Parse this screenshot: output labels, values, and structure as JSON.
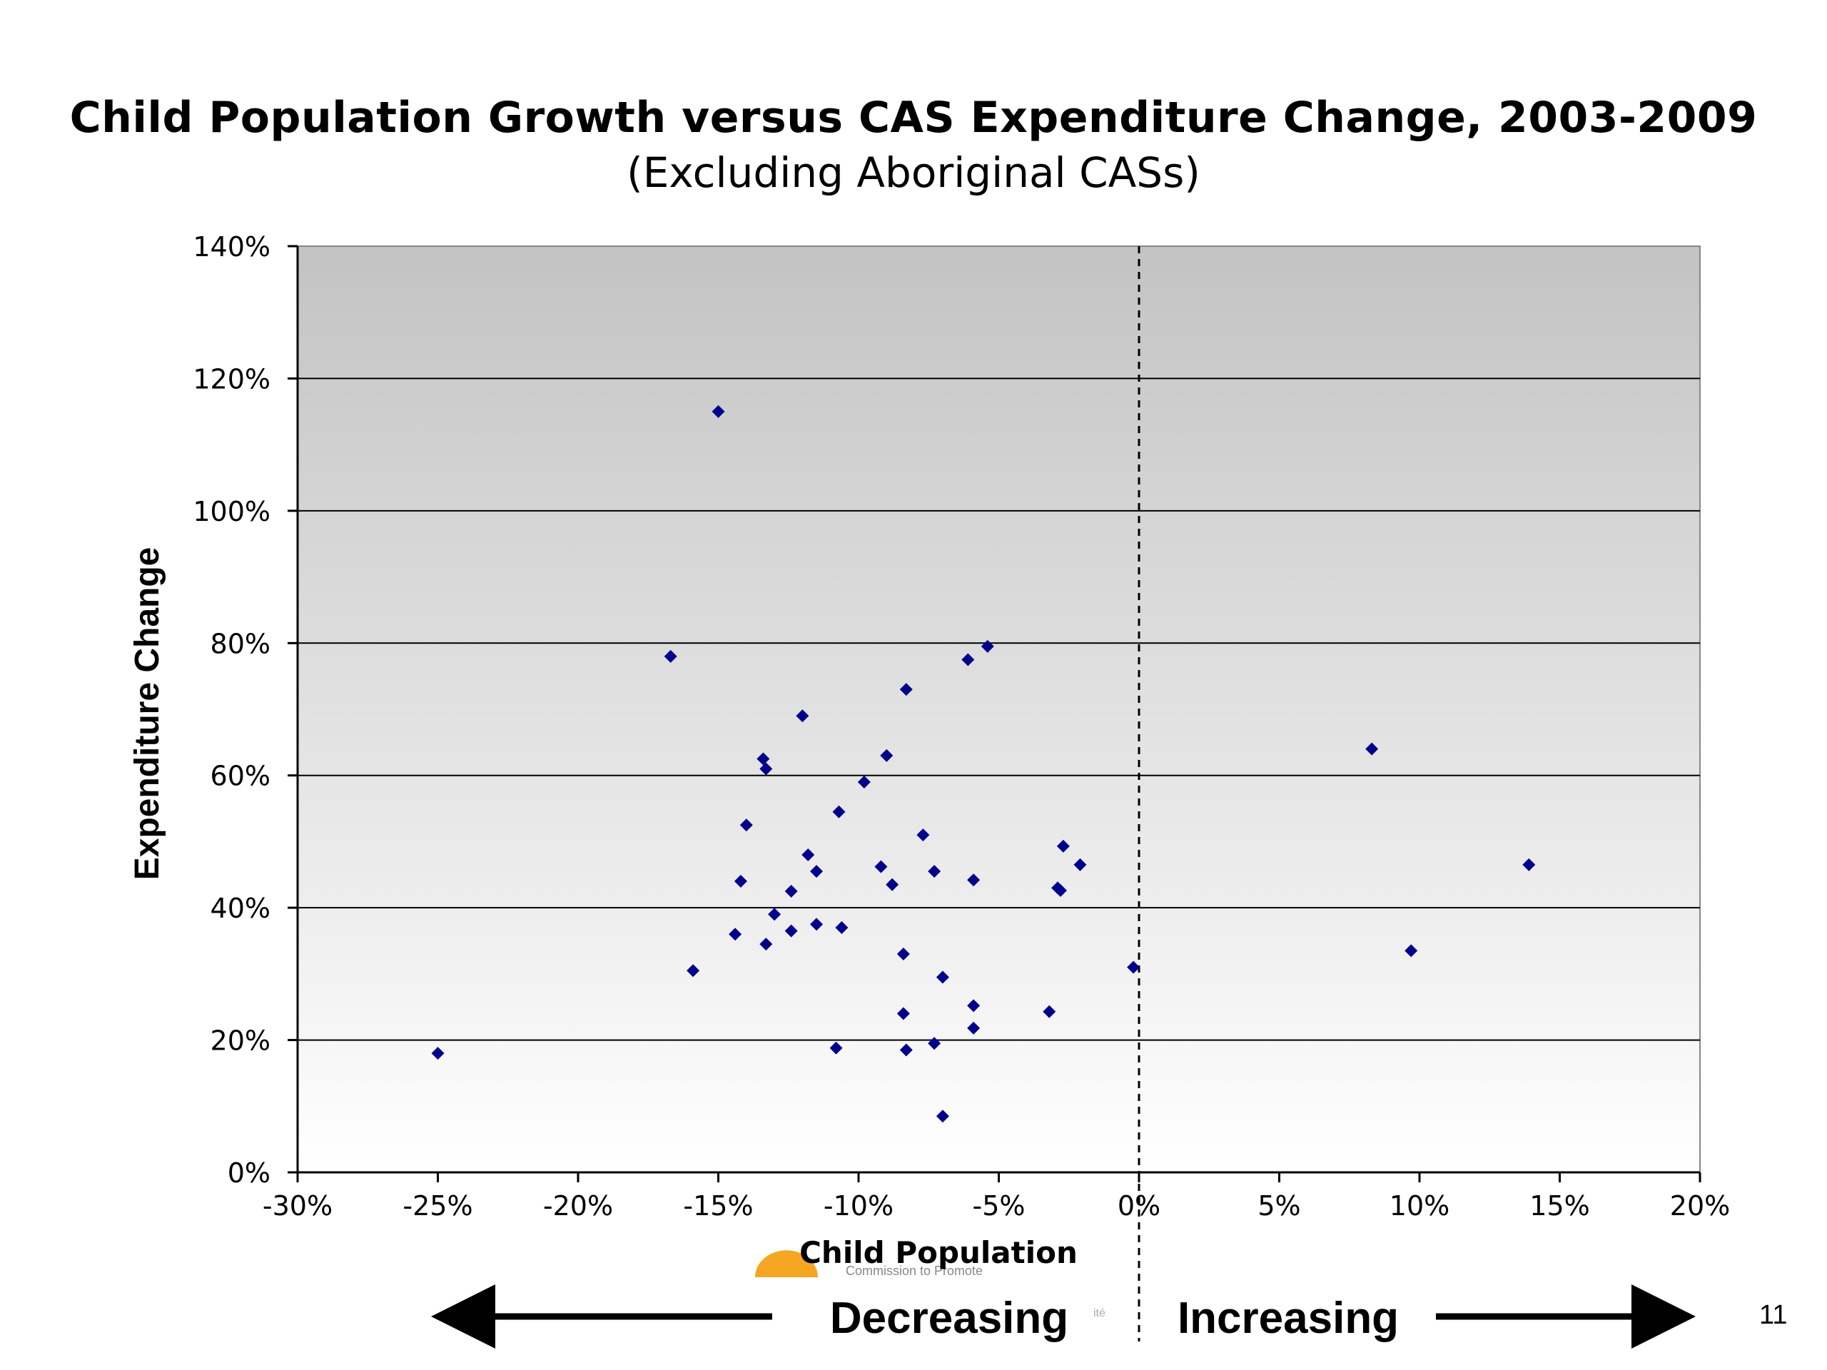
{
  "title": "Child Population Growth versus CAS Expenditure Change, 2003-2009",
  "subtitle": "(Excluding Aboriginal CASs)",
  "page_number": "11",
  "logo_text": "Commission to Promote",
  "logo_suffix": "ité",
  "colors": {
    "marker": "#00008b",
    "plot_top": "#c3c3c3",
    "plot_bottom": "#ffffff",
    "gridline": "#000000",
    "logo": "#f5a623"
  },
  "chart_data": {
    "type": "scatter",
    "title": "Child Population Growth versus CAS Expenditure Change, 2003-2009",
    "subtitle": "(Excluding Aboriginal CASs)",
    "xlabel": "Child Population",
    "ylabel": "Expenditure Change",
    "xlim": [
      -0.3,
      0.2
    ],
    "ylim": [
      0,
      1.4
    ],
    "x_ticks": [
      -0.3,
      -0.25,
      -0.2,
      -0.15,
      -0.1,
      -0.05,
      0.0,
      0.05,
      0.1,
      0.15,
      0.2
    ],
    "x_tick_labels": [
      "-30%",
      "-25%",
      "-20%",
      "-15%",
      "-10%",
      "-5%",
      "0%",
      "5%",
      "10%",
      "15%",
      "20%"
    ],
    "y_ticks": [
      0,
      0.2,
      0.4,
      0.6,
      0.8,
      1.0,
      1.2,
      1.4
    ],
    "y_tick_labels": [
      "0%",
      "20%",
      "40%",
      "60%",
      "80%",
      "100%",
      "120%",
      "140%"
    ],
    "grid": "horizontal",
    "reference_line": {
      "x": 0.0,
      "style": "dashed"
    },
    "annotations": {
      "left_arrow_label": "Decreasing",
      "right_arrow_label": "Increasing"
    },
    "points": [
      [
        -0.15,
        1.15
      ],
      [
        -0.167,
        0.78
      ],
      [
        -0.061,
        0.775
      ],
      [
        -0.054,
        0.795
      ],
      [
        -0.083,
        0.73
      ],
      [
        -0.12,
        0.69
      ],
      [
        -0.134,
        0.625
      ],
      [
        -0.133,
        0.61
      ],
      [
        -0.09,
        0.63
      ],
      [
        -0.098,
        0.59
      ],
      [
        -0.107,
        0.545
      ],
      [
        -0.14,
        0.525
      ],
      [
        -0.077,
        0.51
      ],
      [
        -0.118,
        0.48
      ],
      [
        -0.115,
        0.455
      ],
      [
        -0.092,
        0.462
      ],
      [
        -0.073,
        0.455
      ],
      [
        -0.088,
        0.435
      ],
      [
        -0.059,
        0.442
      ],
      [
        -0.142,
        0.44
      ],
      [
        -0.124,
        0.425
      ],
      [
        -0.027,
        0.493
      ],
      [
        -0.021,
        0.465
      ],
      [
        -0.029,
        0.43
      ],
      [
        -0.028,
        0.426
      ],
      [
        -0.13,
        0.39
      ],
      [
        -0.115,
        0.375
      ],
      [
        -0.106,
        0.37
      ],
      [
        -0.124,
        0.365
      ],
      [
        -0.144,
        0.36
      ],
      [
        -0.133,
        0.345
      ],
      [
        -0.084,
        0.33
      ],
      [
        -0.07,
        0.295
      ],
      [
        -0.159,
        0.305
      ],
      [
        -0.002,
        0.31
      ],
      [
        -0.059,
        0.252
      ],
      [
        -0.084,
        0.24
      ],
      [
        -0.032,
        0.243
      ],
      [
        -0.059,
        0.218
      ],
      [
        -0.073,
        0.195
      ],
      [
        -0.108,
        0.188
      ],
      [
        -0.083,
        0.185
      ],
      [
        -0.25,
        0.18
      ],
      [
        -0.07,
        0.085
      ],
      [
        0.083,
        0.64
      ],
      [
        0.139,
        0.465
      ],
      [
        0.097,
        0.335
      ]
    ]
  }
}
